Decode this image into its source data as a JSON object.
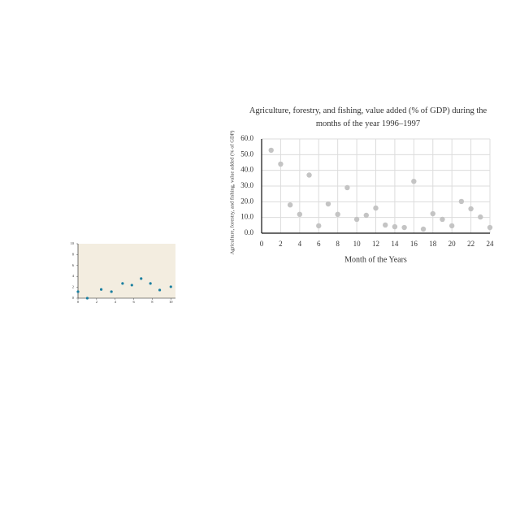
{
  "chart_data": [
    {
      "type": "scatter",
      "x": [
        0,
        1,
        2.5,
        3.6,
        4.8,
        5.8,
        6.8,
        7.8,
        8.8,
        10
      ],
      "values": [
        1.2,
        0,
        1.6,
        1.2,
        2.7,
        2.4,
        3.6,
        2.7,
        1.5,
        2.1
      ],
      "color": "#1a7fa0",
      "background": "#f3ede0",
      "xlim": [
        0,
        10.5
      ],
      "ylim": [
        0,
        10
      ],
      "xticks": [
        0,
        2,
        4,
        6,
        8,
        10
      ],
      "yticks": [
        0,
        2,
        4,
        6,
        8,
        10
      ],
      "grid": false
    },
    {
      "type": "scatter",
      "title": "Agriculture, forestry, and fishing, value added (% of GDP) during the months of the year 1996–1997",
      "xlabel": "Month of the Years",
      "ylabel": "Agriculture, forestry, and fishing, value added (% of GDP)",
      "x": [
        1,
        2,
        3,
        4,
        5,
        6,
        7,
        8,
        9,
        10,
        11,
        12,
        13,
        14,
        15,
        16,
        17,
        18,
        19,
        20,
        21,
        22,
        23,
        24
      ],
      "values": [
        52.8,
        44,
        18,
        12,
        37,
        4.7,
        18.6,
        12,
        29,
        8.8,
        11.4,
        16,
        5.2,
        4.1,
        3.6,
        33,
        2.6,
        12.4,
        8.8,
        4.7,
        20.2,
        15.5,
        10.3,
        3.6
      ],
      "color": "#c4c4c4",
      "xlim": [
        0,
        24
      ],
      "ylim": [
        0,
        60
      ],
      "xticks": [
        0,
        2,
        4,
        6,
        8,
        10,
        12,
        14,
        16,
        18,
        20,
        22,
        24
      ],
      "yticks": [
        {
          "value": 0,
          "label": "0.0"
        },
        {
          "value": 10,
          "label": "10.0"
        },
        {
          "value": 20,
          "label": "20.0"
        },
        {
          "value": 30,
          "label": "30.0"
        },
        {
          "value": 40,
          "label": "40.0"
        },
        {
          "value": 50,
          "label": "50.0"
        },
        {
          "value": 60,
          "label": "60.0"
        }
      ],
      "grid": true
    }
  ]
}
